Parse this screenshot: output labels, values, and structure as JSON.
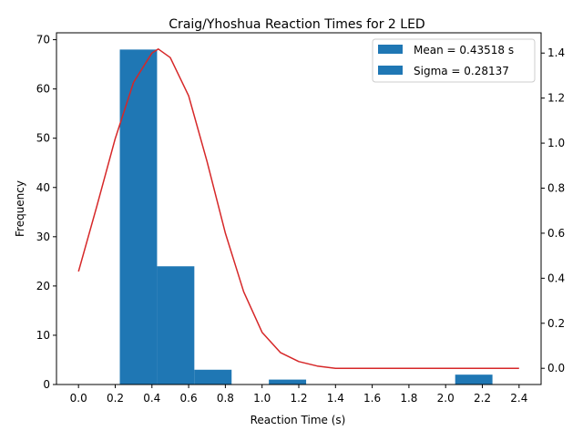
{
  "chart_data": {
    "type": "bar",
    "title": "Craig/Yhoshua Reaction Times for 2 LED",
    "xlabel": "Reaction Time (s)",
    "ylabel": "Frequency",
    "y2label": "",
    "xlim": [
      -0.12,
      2.52
    ],
    "ylim": [
      0,
      71.4
    ],
    "y2lim": [
      -0.072,
      1.49
    ],
    "x_ticks": [
      "0.0",
      "0.2",
      "0.4",
      "0.6",
      "0.8",
      "1.0",
      "1.2",
      "1.4",
      "1.6",
      "1.8",
      "2.0",
      "2.2",
      "2.4"
    ],
    "y_ticks": [
      "0",
      "10",
      "20",
      "30",
      "40",
      "50",
      "60",
      "70"
    ],
    "y2_ticks": [
      "0.0",
      "0.2",
      "0.4",
      "0.6",
      "0.8",
      "1.0",
      "1.2",
      "1.4"
    ],
    "bars": [
      {
        "x0": 0.225,
        "x1": 0.428,
        "value": 68
      },
      {
        "x0": 0.428,
        "x1": 0.631,
        "value": 24
      },
      {
        "x0": 0.631,
        "x1": 0.834,
        "value": 3
      },
      {
        "x0": 1.037,
        "x1": 1.24,
        "value": 1
      },
      {
        "x0": 2.052,
        "x1": 2.255,
        "value": 2
      }
    ],
    "bar_color": "#1f77b4",
    "curve": {
      "color": "#d62728",
      "x": [
        0.0,
        0.1,
        0.2,
        0.3,
        0.4,
        0.435,
        0.5,
        0.6,
        0.7,
        0.8,
        0.9,
        1.0,
        1.1,
        1.2,
        1.3,
        1.4,
        1.6,
        1.8,
        2.0,
        2.2,
        2.4
      ],
      "y": [
        0.43,
        0.72,
        1.02,
        1.27,
        1.4,
        1.418,
        1.38,
        1.21,
        0.92,
        0.6,
        0.34,
        0.16,
        0.07,
        0.03,
        0.01,
        0.0,
        0.0,
        0.0,
        0.0,
        0.0,
        0.0
      ]
    },
    "legend": {
      "position": "top-right",
      "entries": [
        "Mean = 0.43518 s",
        "Sigma = 0.28137"
      ]
    }
  }
}
